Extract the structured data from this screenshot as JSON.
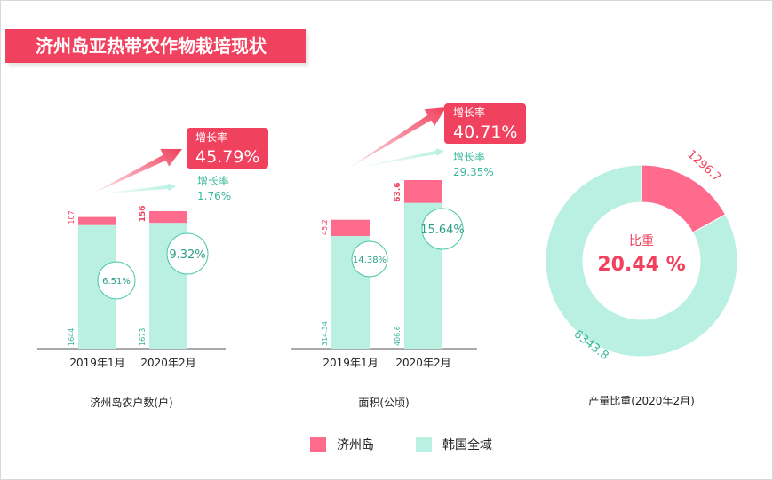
{
  "header": {
    "title": "济州岛亚热带农作物栽培现状"
  },
  "labels": {
    "growth": "增长率"
  },
  "legend": [
    {
      "name": "济州岛",
      "color": "#ff6b8d"
    },
    {
      "name": "韩国全域",
      "color": "#b9f0e2"
    }
  ],
  "colors": {
    "jeju": "#ff6b8d",
    "korea": "#b9f0e2",
    "accent": "#f0415e",
    "teal_text": "#39b79a"
  },
  "chart_data": [
    {
      "type": "bar",
      "title": "济州岛农户数(户)",
      "categories": [
        "2019年1月",
        "2020年2月"
      ],
      "series": [
        {
          "name": "济州岛",
          "values": [
            107,
            156
          ],
          "labels": [
            "107",
            "156"
          ]
        },
        {
          "name": "韩国全域",
          "values": [
            1644,
            1673
          ],
          "labels": [
            "1644",
            "1673"
          ]
        }
      ],
      "share_labels": [
        "6.51%",
        "9.32%"
      ],
      "growth": {
        "jeju": "45.79%",
        "korea": "1.76%"
      }
    },
    {
      "type": "bar",
      "title": "面积(公顷)",
      "categories": [
        "2019年1月",
        "2020年2月"
      ],
      "series": [
        {
          "name": "济州岛",
          "values": [
            45.2,
            63.6
          ],
          "labels": [
            "45.2",
            "63.6"
          ]
        },
        {
          "name": "韩国全域",
          "values": [
            314.34,
            406.6
          ],
          "labels": [
            "314.34",
            "406.6"
          ]
        }
      ],
      "share_labels": [
        "14.38%",
        "15.64%"
      ],
      "growth": {
        "jeju": "40.71%",
        "korea": "29.35%"
      }
    },
    {
      "type": "pie",
      "title": "产量比重(2020年2月)",
      "series": [
        {
          "name": "济州岛",
          "value": 1296.7,
          "label": "1296.7"
        },
        {
          "name": "韩国全域",
          "value": 6343.8,
          "label": "6343.8"
        }
      ],
      "center_title": "比重",
      "center_value": "20.44 %"
    }
  ]
}
